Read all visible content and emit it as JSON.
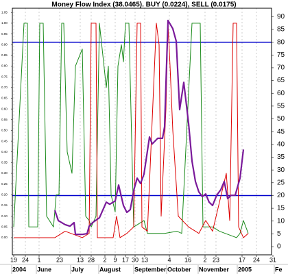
{
  "chart_data": {
    "type": "line",
    "title": "Money Flow Index (38.0465). BUY (0.0224), SELL (0.0175)",
    "xlim": [
      0,
      189
    ],
    "ylim": [
      -0.08,
      1.07
    ],
    "y2lim": [
      -3.2,
      93.3
    ],
    "grid": true,
    "yticks": [
      {
        "value": 0,
        "label": "0.00"
      },
      {
        "value": 0.05,
        "label": "0.05"
      },
      {
        "value": 0.1,
        "label": "0.10"
      },
      {
        "value": 0.15,
        "label": "0.15"
      },
      {
        "value": 0.2,
        "label": "0.20"
      },
      {
        "value": 0.25,
        "label": "0.25"
      },
      {
        "value": 0.3,
        "label": "0.30"
      },
      {
        "value": 0.35,
        "label": "0.35"
      },
      {
        "value": 0.4,
        "label": "0.40"
      },
      {
        "value": 0.45,
        "label": "0.45"
      },
      {
        "value": 0.5,
        "label": "0.50"
      },
      {
        "value": 0.55,
        "label": "0.55"
      },
      {
        "value": 0.6,
        "label": "0.60"
      },
      {
        "value": 0.65,
        "label": "0.65"
      },
      {
        "value": 0.7,
        "label": "0.70"
      },
      {
        "value": 0.75,
        "label": "0.75"
      },
      {
        "value": 0.8,
        "label": "0.80"
      },
      {
        "value": 0.85,
        "label": "0.85"
      },
      {
        "value": 0.9,
        "label": "0.90"
      },
      {
        "value": 0.95,
        "label": "0.95"
      },
      {
        "value": 1,
        "label": "1.00"
      },
      {
        "value": 1.05,
        "label": "1.05"
      }
    ],
    "y2ticks": [
      0,
      5,
      10,
      15,
      20,
      25,
      30,
      35,
      40,
      45,
      50,
      55,
      60,
      65,
      70,
      75,
      80,
      85,
      90
    ],
    "xticks": [
      {
        "value": 1,
        "label": "19"
      },
      {
        "value": 9.5,
        "label": "24"
      },
      {
        "value": 19.5,
        "label": "1"
      },
      {
        "value": 34.5,
        "label": "23"
      },
      {
        "value": 49.5,
        "label": "13"
      },
      {
        "value": 57.5,
        "label": "28"
      },
      {
        "value": 67.5,
        "label": "2"
      },
      {
        "value": 75,
        "label": "9"
      },
      {
        "value": 82.5,
        "label": "17"
      },
      {
        "value": 89.5,
        "label": "30"
      },
      {
        "value": 96.5,
        "label": "13"
      },
      {
        "value": 114.5,
        "label": "4"
      },
      {
        "value": 128,
        "label": "16"
      },
      {
        "value": 140.5,
        "label": "2"
      },
      {
        "value": 148.5,
        "label": "23"
      },
      {
        "value": 167.5,
        "label": "17"
      },
      {
        "value": 178,
        "label": "24"
      },
      {
        "value": 190,
        "label": "31"
      }
    ],
    "month_ticks": [
      {
        "value": 0,
        "label": "2004"
      },
      {
        "value": 18,
        "label": "June"
      },
      {
        "value": 43,
        "label": "July"
      },
      {
        "value": 63.5,
        "label": "August"
      },
      {
        "value": 89,
        "label": "September"
      },
      {
        "value": 113,
        "label": "October"
      },
      {
        "value": 136,
        "label": "November"
      },
      {
        "value": 164.5,
        "label": "2005"
      },
      {
        "value": 191.5,
        "label": "Fe"
      }
    ],
    "levels": {
      "axis": "y2",
      "color": "#0000cc",
      "values": [
        80,
        20
      ]
    },
    "series": [
      {
        "color": "#1a8a1a",
        "axis": "y",
        "x": [
          1,
          8.5,
          11,
          12,
          18.5,
          20,
          22.5,
          25,
          30,
          32,
          34,
          36,
          37.5,
          40,
          43.5,
          46,
          51,
          53.5,
          56,
          57.5,
          61,
          63.5,
          66,
          68.5,
          70,
          72,
          75,
          77,
          79.5,
          81,
          82.5,
          85,
          88.5,
          96,
          98.5,
          111,
          120,
          123.5,
          131,
          137,
          139,
          146,
          151,
          163.5,
          166,
          168.5,
          172
        ],
        "values": [
          0.05,
          1.0,
          1.0,
          0.05,
          0.05,
          1.0,
          1.0,
          0.1,
          0.05,
          0.2,
          0.2,
          1.0,
          1.0,
          0.4,
          0.3,
          0.8,
          0.88,
          0.1,
          0.08,
          0.05,
          0.1,
          1.0,
          0.85,
          0.7,
          0.8,
          0.2,
          0.12,
          0.8,
          0.9,
          0.82,
          1.0,
          1.0,
          0.05,
          0.08,
          0.02,
          0.02,
          0.03,
          0.02,
          1.0,
          1.0,
          0.05,
          0.05,
          0.03,
          0.0,
          0.02,
          0.08,
          0.02
        ]
      },
      {
        "color": "#dd0000",
        "axis": "y",
        "x": [
          1,
          31,
          38.5,
          51,
          56,
          57.5,
          61,
          62,
          73.5,
          76,
          78.5,
          83.5,
          88.5,
          91,
          93.5,
          94.5,
          98.5,
          105,
          107,
          108.5,
          112,
          113.5,
          115,
          117,
          121,
          128.5,
          136,
          141,
          146,
          156,
          158.5,
          161,
          163.5,
          165,
          168.5,
          172
        ],
        "values": [
          0.0,
          0.0,
          0.03,
          0.0,
          0.02,
          1.0,
          1.0,
          0.0,
          0.0,
          0.1,
          0.0,
          0.02,
          0.05,
          1.0,
          1.0,
          0.05,
          0.03,
          1.0,
          0.9,
          0.1,
          0.6,
          1.0,
          0.8,
          0.5,
          0.1,
          0.05,
          0.02,
          0.08,
          0.03,
          0.3,
          0.08,
          1.0,
          1.0,
          0.05,
          0.0,
          0.02
        ]
      },
      {
        "color": "#7a1a9a",
        "axis": "y2",
        "x": [
          31,
          33.5,
          38.5,
          42,
          45,
          46,
          51,
          54.5,
          56,
          58.5,
          63.5,
          68.5,
          71,
          75,
          77.5,
          81,
          83.5,
          86,
          88.5,
          91,
          93.5,
          96,
          100,
          102,
          106,
          109.5,
          111,
          113.5,
          117,
          119.5,
          122,
          125,
          128.5,
          131,
          133.5,
          136,
          138.5,
          141,
          143.5,
          146,
          149,
          152,
          154.5,
          157,
          159.5,
          162.5,
          166,
          168.5
        ],
        "values": [
          14.2,
          10.2,
          8.6,
          8.0,
          9.4,
          4.8,
          4.8,
          5.1,
          8.0,
          9.4,
          11.3,
          17.4,
          16.6,
          17.9,
          24.1,
          16.1,
          13.4,
          14.5,
          22.0,
          26.8,
          24.7,
          28.4,
          42.9,
          40.2,
          42.4,
          42.4,
          46.9,
          88.5,
          85.3,
          80.4,
          53.6,
          64.3,
          48.3,
          33.5,
          25.5,
          21.4,
          19.6,
          20.6,
          17.4,
          16.1,
          20.1,
          22.3,
          25.5,
          18.8,
          20.1,
          20.1,
          26.8,
          38.0
        ]
      }
    ]
  }
}
